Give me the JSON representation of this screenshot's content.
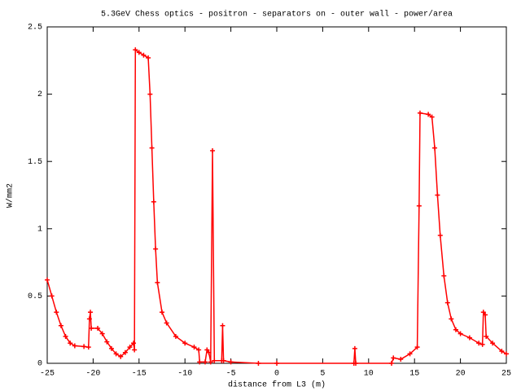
{
  "chart_data": {
    "type": "line",
    "title": "5.3GeV Chess optics - positron - separators on - outer wall - power/area",
    "x_label": "distance from L3 (m)",
    "y_label": "W/mm2",
    "xlim": [
      -25,
      25
    ],
    "xticks": [
      -25,
      -20,
      -15,
      -10,
      -5,
      0,
      5,
      10,
      15,
      20,
      25
    ],
    "ylim": [
      0,
      2.5
    ],
    "yticks": [
      0,
      0.5,
      1,
      1.5,
      2,
      2.5
    ],
    "grid": false,
    "series": [
      {
        "color": "#ff0000",
        "x": [
          -25,
          -24.5,
          -24,
          -23.5,
          -23,
          -22.5,
          -22,
          -21,
          -20.5,
          -20.4,
          -20.3,
          -20.2,
          -19.5,
          -19,
          -18.5,
          -18,
          -17.5,
          -17,
          -16.5,
          -16,
          -15.6,
          -15.5,
          -15.4,
          -15,
          -14.5,
          -14,
          -13.8,
          -13.6,
          -13.4,
          -13.2,
          -13,
          -12.5,
          -12,
          -11,
          -10,
          -9,
          -8.5,
          -8.4,
          -7.8,
          -7.6,
          -7.4,
          -7.2,
          -7,
          -6.8,
          -6,
          -5.9,
          -5.8,
          -5,
          -2,
          0,
          8.4,
          8.5,
          8.6,
          12.5,
          12.7,
          13.5,
          14.5,
          15.3,
          15.5,
          15.6,
          16.5,
          16.9,
          17.2,
          17.5,
          17.8,
          18.2,
          18.6,
          19,
          19.5,
          20,
          21,
          22,
          22.4,
          22.5,
          22.7,
          22.8,
          23.5,
          24.5,
          25
        ],
        "values": [
          0.62,
          0.5,
          0.38,
          0.28,
          0.2,
          0.15,
          0.13,
          0.125,
          0.12,
          0.33,
          0.38,
          0.26,
          0.26,
          0.22,
          0.16,
          0.11,
          0.07,
          0.05,
          0.08,
          0.12,
          0.15,
          0.1,
          2.33,
          2.31,
          2.29,
          2.27,
          2.0,
          1.6,
          1.2,
          0.85,
          0.6,
          0.38,
          0.3,
          0.2,
          0.15,
          0.12,
          0.1,
          0.01,
          0.01,
          0.1,
          0.08,
          0.01,
          1.58,
          0.02,
          0.02,
          0.28,
          0.02,
          0.01,
          0,
          0,
          0,
          0.11,
          0,
          0,
          0.04,
          0.03,
          0.07,
          0.12,
          1.17,
          1.86,
          1.85,
          1.83,
          1.6,
          1.25,
          0.95,
          0.65,
          0.45,
          0.33,
          0.25,
          0.22,
          0.19,
          0.15,
          0.14,
          0.38,
          0.36,
          0.2,
          0.15,
          0.09,
          0.07
        ]
      }
    ]
  }
}
